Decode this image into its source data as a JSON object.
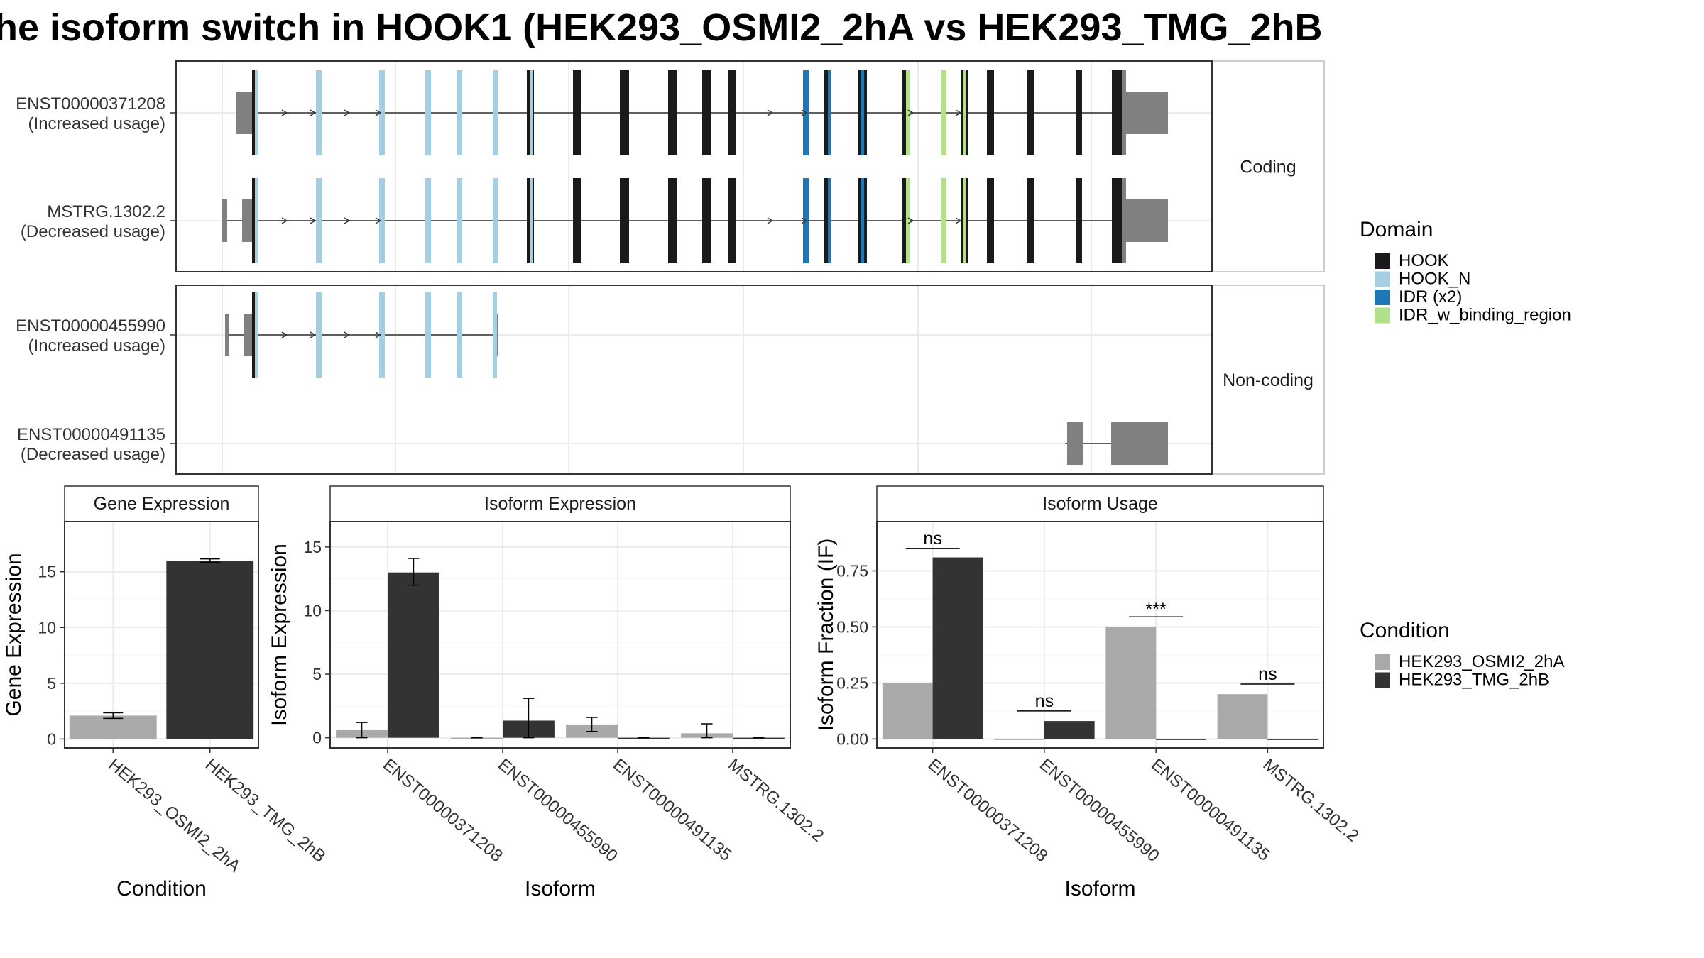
{
  "title": "he isoform switch in HOOK1 (HEK293_OSMI2_2hA vs HEK293_TMG_2hB",
  "colors": {
    "HOOK": "#1a1a1a",
    "HOOK_N": "#a6cee3",
    "IDR (x2)": "#1f78b4",
    "IDR_w_binding_region": "#b2df8a",
    "utr": "#808080",
    "cond_a": "#a9a9a9",
    "cond_b": "#333333"
  },
  "structure": {
    "facets": [
      "Coding",
      "Non-coding"
    ],
    "isoforms": [
      {
        "facet": 0,
        "name": "ENST00000371208",
        "usage": "(Increased usage)"
      },
      {
        "facet": 0,
        "name": "MSTRG.1302.2",
        "usage": "(Decreased usage)"
      },
      {
        "facet": 1,
        "name": "ENST00000455990",
        "usage": "(Increased usage)"
      },
      {
        "facet": 1,
        "name": "ENST00000491135",
        "usage": "(Decreased usage)"
      }
    ]
  },
  "legend_domain": {
    "title": "Domain",
    "items": [
      "HOOK",
      "HOOK_N",
      "IDR (x2)",
      "IDR_w_binding_region"
    ]
  },
  "legend_condition": {
    "title": "Condition",
    "items": [
      "HEK293_OSMI2_2hA",
      "HEK293_TMG_2hB"
    ]
  },
  "chart_data": [
    {
      "type": "bar",
      "title": "Gene Expression",
      "xlabel": "Condition",
      "ylabel": "Gene Expression",
      "ylim": [
        -0.8,
        19.5
      ],
      "yticks": [
        0,
        5,
        10,
        15
      ],
      "categories": [
        "HEK293_OSMI2_2hA",
        "HEK293_TMG_2hB"
      ],
      "values": [
        2.1,
        16.0
      ],
      "errors": [
        [
          1.85,
          2.35
        ],
        [
          15.85,
          16.15
        ]
      ]
    },
    {
      "type": "bar",
      "title": "Isoform Expression",
      "xlabel": "Isoform",
      "ylabel": "Isoform Expression",
      "ylim": [
        -0.8,
        17.0
      ],
      "yticks": [
        0,
        5,
        10,
        15
      ],
      "categories": [
        "ENST00000371208",
        "ENST00000455990",
        "ENST00000491135",
        "MSTRG.1302.2"
      ],
      "series": [
        {
          "name": "HEK293_OSMI2_2hA",
          "values": [
            0.6,
            0.0,
            1.05,
            0.35
          ],
          "errors": [
            [
              0.0,
              1.2
            ],
            [
              0.0,
              0.0
            ],
            [
              0.5,
              1.6
            ],
            [
              0.0,
              1.1
            ]
          ]
        },
        {
          "name": "HEK293_TMG_2hB",
          "values": [
            13.0,
            1.35,
            0.0,
            0.0
          ],
          "errors": [
            [
              12.0,
              14.1
            ],
            [
              0.0,
              3.1
            ],
            [
              0.0,
              0.0
            ],
            [
              0.0,
              0.0
            ]
          ]
        }
      ]
    },
    {
      "type": "bar",
      "title": "Isoform Usage",
      "xlabel": "Isoform",
      "ylabel": "Isoform Fraction (IF)",
      "ylim": [
        -0.04,
        0.97
      ],
      "yticks": [
        0.0,
        0.25,
        0.5,
        0.75
      ],
      "ytick_labels": [
        "0.00",
        "0.25",
        "0.50",
        "0.75"
      ],
      "categories": [
        "ENST00000371208",
        "ENST00000455990",
        "ENST00000491135",
        "MSTRG.1302.2"
      ],
      "series": [
        {
          "name": "HEK293_OSMI2_2hA",
          "values": [
            0.25,
            0.0,
            0.5,
            0.2
          ]
        },
        {
          "name": "HEK293_TMG_2hB",
          "values": [
            0.81,
            0.08,
            0.0,
            0.0
          ]
        }
      ],
      "significance": [
        {
          "label": "ns",
          "y": 0.85
        },
        {
          "label": "ns",
          "y": 0.125
        },
        {
          "label": "***",
          "y": 0.545
        },
        {
          "label": "ns",
          "y": 0.245
        }
      ]
    }
  ]
}
